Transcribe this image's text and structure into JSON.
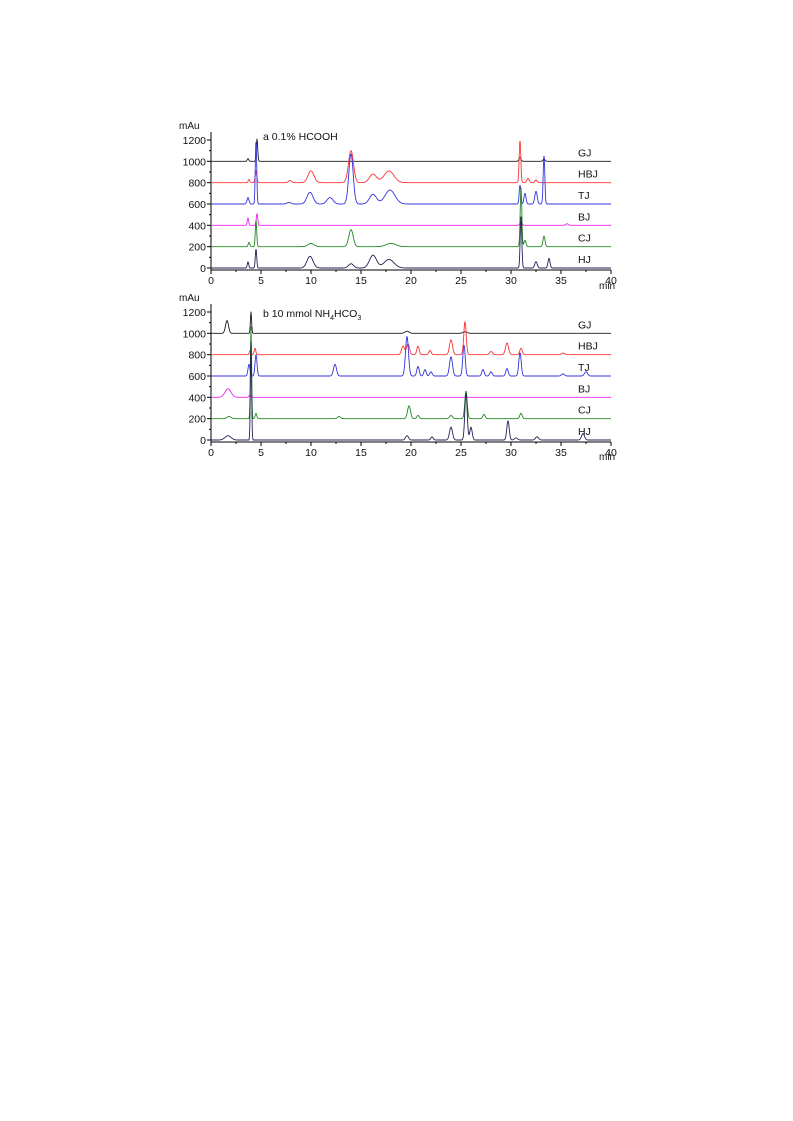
{
  "chart_data": [
    {
      "type": "line",
      "panel_label": "a 0.1% HCOOH",
      "ylabel": "mAu",
      "xunit": "min",
      "xlim": [
        0,
        40
      ],
      "ylim": [
        0,
        1200
      ],
      "x_ticks": [
        "0",
        "5",
        "10",
        "15",
        "20",
        "25",
        "30",
        "35",
        "40"
      ],
      "y_ticks": [
        "0",
        "200",
        "400",
        "600",
        "800",
        "1000",
        "1200"
      ],
      "grid": false,
      "legend": "labels at right end of each trace",
      "series": [
        {
          "name": "GJ",
          "color": "#1a1a1a",
          "baseline": 1000,
          "peaks": [
            [
              3.7,
              25,
              0.08
            ],
            [
              4.6,
              210,
              0.07
            ],
            [
              30.9,
              35,
              0.1
            ],
            [
              33.3,
              20,
              0.1
            ]
          ]
        },
        {
          "name": "HBJ",
          "color": "#ff3333",
          "baseline": 800,
          "peaks": [
            [
              3.8,
              30,
              0.08
            ],
            [
              4.5,
              110,
              0.08
            ],
            [
              7.9,
              20,
              0.15
            ],
            [
              10.0,
              110,
              0.3
            ],
            [
              14.0,
              300,
              0.25
            ],
            [
              16.2,
              80,
              0.35
            ],
            [
              17.8,
              110,
              0.5
            ],
            [
              30.9,
              400,
              0.08
            ],
            [
              31.7,
              40,
              0.12
            ],
            [
              32.5,
              25,
              0.12
            ]
          ]
        },
        {
          "name": "TJ",
          "color": "#3333dd",
          "baseline": 600,
          "peaks": [
            [
              3.7,
              60,
              0.1
            ],
            [
              4.5,
              600,
              0.07
            ],
            [
              7.8,
              15,
              0.2
            ],
            [
              9.9,
              110,
              0.3
            ],
            [
              11.9,
              60,
              0.3
            ],
            [
              14.0,
              470,
              0.22
            ],
            [
              16.2,
              90,
              0.35
            ],
            [
              17.9,
              130,
              0.5
            ],
            [
              30.9,
              180,
              0.08
            ],
            [
              31.4,
              100,
              0.1
            ],
            [
              32.5,
              120,
              0.12
            ],
            [
              33.3,
              460,
              0.08
            ]
          ]
        },
        {
          "name": "BJ",
          "color": "#ee22ee",
          "baseline": 400,
          "peaks": [
            [
              3.7,
              70,
              0.07
            ],
            [
              4.6,
              110,
              0.07
            ],
            [
              31.0,
              40,
              0.1
            ],
            [
              35.6,
              15,
              0.12
            ]
          ]
        },
        {
          "name": "CJ",
          "color": "#228822",
          "baseline": 200,
          "peaks": [
            [
              3.8,
              40,
              0.08
            ],
            [
              4.5,
              250,
              0.07
            ],
            [
              10.0,
              30,
              0.3
            ],
            [
              14.0,
              160,
              0.22
            ],
            [
              18.0,
              30,
              0.5
            ],
            [
              31.0,
              550,
              0.08
            ],
            [
              31.4,
              60,
              0.1
            ],
            [
              33.3,
              100,
              0.1
            ]
          ]
        },
        {
          "name": "HJ",
          "color": "#222255",
          "baseline": 0,
          "peaks": [
            [
              3.7,
              60,
              0.07
            ],
            [
              4.5,
              180,
              0.07
            ],
            [
              9.9,
              110,
              0.3
            ],
            [
              14.0,
              40,
              0.25
            ],
            [
              16.2,
              120,
              0.35
            ],
            [
              17.8,
              80,
              0.5
            ],
            [
              31.0,
              480,
              0.08
            ],
            [
              32.5,
              60,
              0.12
            ],
            [
              33.8,
              90,
              0.1
            ]
          ]
        }
      ]
    },
    {
      "type": "line",
      "panel_label": "b 10 mmol NH",
      "panel_label_sub1": "4",
      "panel_label_mid": "HCO",
      "panel_label_sub2": "3",
      "ylabel": "mAu",
      "xunit": "min",
      "xlim": [
        0,
        40
      ],
      "ylim": [
        0,
        1200
      ],
      "x_ticks": [
        "0",
        "5",
        "10",
        "15",
        "20",
        "25",
        "30",
        "35",
        "40"
      ],
      "y_ticks": [
        "0",
        "200",
        "400",
        "600",
        "800",
        "1000",
        "1200"
      ],
      "grid": false,
      "legend": "labels at right end of each trace",
      "series": [
        {
          "name": "GJ",
          "color": "#1a1a1a",
          "baseline": 1000,
          "peaks": [
            [
              1.6,
              120,
              0.15
            ],
            [
              4.0,
              200,
              0.06
            ],
            [
              19.6,
              20,
              0.2
            ],
            [
              25.4,
              15,
              0.2
            ]
          ]
        },
        {
          "name": "HBJ",
          "color": "#ff3333",
          "baseline": 800,
          "peaks": [
            [
              3.9,
              40,
              0.07
            ],
            [
              4.4,
              60,
              0.08
            ],
            [
              19.2,
              80,
              0.15
            ],
            [
              19.7,
              100,
              0.15
            ],
            [
              20.7,
              80,
              0.12
            ],
            [
              21.9,
              40,
              0.12
            ],
            [
              24.0,
              140,
              0.15
            ],
            [
              25.4,
              310,
              0.12
            ],
            [
              28.0,
              30,
              0.15
            ],
            [
              29.6,
              110,
              0.15
            ],
            [
              31.0,
              60,
              0.12
            ],
            [
              35.2,
              15,
              0.15
            ]
          ]
        },
        {
          "name": "TJ",
          "color": "#3333dd",
          "baseline": 600,
          "peaks": [
            [
              3.8,
              110,
              0.1
            ],
            [
              4.5,
              200,
              0.1
            ],
            [
              12.4,
              110,
              0.15
            ],
            [
              19.6,
              370,
              0.15
            ],
            [
              20.7,
              90,
              0.12
            ],
            [
              21.4,
              60,
              0.12
            ],
            [
              22.0,
              40,
              0.12
            ],
            [
              24.0,
              180,
              0.15
            ],
            [
              25.3,
              290,
              0.12
            ],
            [
              27.2,
              60,
              0.12
            ],
            [
              28.0,
              40,
              0.12
            ],
            [
              29.6,
              70,
              0.12
            ],
            [
              30.9,
              220,
              0.12
            ],
            [
              35.2,
              20,
              0.15
            ],
            [
              37.5,
              40,
              0.15
            ]
          ]
        },
        {
          "name": "BJ",
          "color": "#ee22ee",
          "baseline": 400,
          "peaks": [
            [
              1.7,
              80,
              0.3
            ],
            [
              3.9,
              20,
              0.1
            ]
          ]
        },
        {
          "name": "CJ",
          "color": "#228822",
          "baseline": 200,
          "peaks": [
            [
              1.8,
              20,
              0.2
            ],
            [
              4.0,
              860,
              0.06
            ],
            [
              4.5,
              50,
              0.08
            ],
            [
              12.8,
              20,
              0.15
            ],
            [
              19.8,
              120,
              0.15
            ],
            [
              20.7,
              30,
              0.12
            ],
            [
              24.0,
              30,
              0.15
            ],
            [
              25.5,
              260,
              0.12
            ],
            [
              27.3,
              40,
              0.12
            ],
            [
              31.0,
              50,
              0.12
            ]
          ]
        },
        {
          "name": "HJ",
          "color": "#222255",
          "baseline": 0,
          "peaks": [
            [
              1.7,
              40,
              0.3
            ],
            [
              4.0,
              920,
              0.06
            ],
            [
              19.6,
              40,
              0.15
            ],
            [
              22.1,
              30,
              0.12
            ],
            [
              24.0,
              120,
              0.15
            ],
            [
              25.5,
              440,
              0.12
            ],
            [
              26.0,
              120,
              0.12
            ],
            [
              29.7,
              180,
              0.12
            ],
            [
              30.5,
              20,
              0.15
            ],
            [
              32.6,
              30,
              0.15
            ],
            [
              37.2,
              60,
              0.15
            ]
          ]
        }
      ]
    }
  ]
}
